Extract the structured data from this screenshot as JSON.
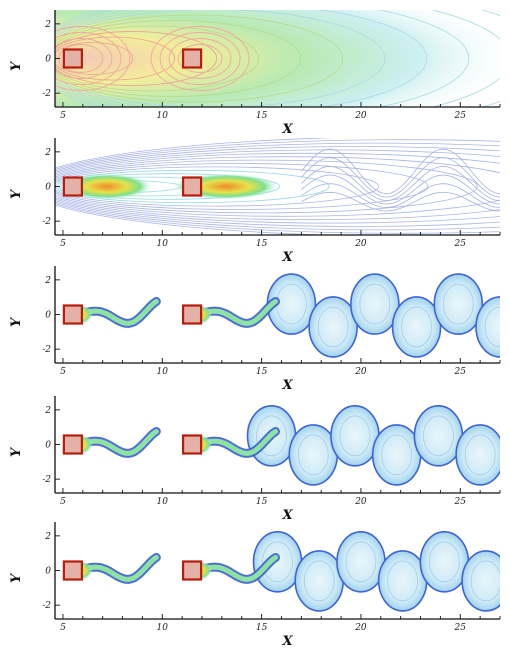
{
  "figure": {
    "axis_labels": {
      "x": "X",
      "y": "Y"
    },
    "x_ticks": [
      "5",
      "10",
      "15",
      "20",
      "25"
    ],
    "y_ticks": [
      "2",
      "0",
      "-2"
    ],
    "x_range": [
      4.6,
      27.0
    ],
    "y_range": [
      -2.8,
      2.8
    ],
    "cylinders": [
      {
        "x": 5.5,
        "y": 0
      },
      {
        "x": 11.5,
        "y": 0
      }
    ],
    "colors": {
      "cylinder_fill": "#e3b1a6",
      "cylinder_edge": "#b81c0c",
      "panel_bg": "#ffffff"
    },
    "panels": [
      {
        "id": "panel-1",
        "style": "steady-fan"
      },
      {
        "id": "panel-2",
        "style": "weak-wake"
      },
      {
        "id": "panel-3",
        "style": "vortex-street"
      },
      {
        "id": "panel-4",
        "style": "vortex-street"
      },
      {
        "id": "panel-5",
        "style": "vortex-street"
      }
    ]
  }
}
